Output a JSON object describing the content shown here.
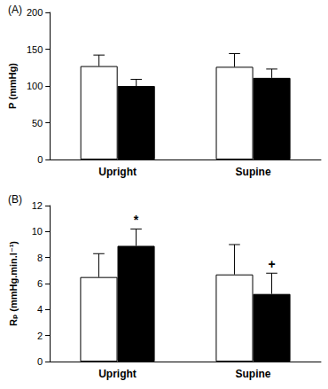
{
  "chart_data": [
    {
      "type": "bar",
      "panel_label": "(A)",
      "y_label": "P (mmHg)",
      "categories": [
        "Upright",
        "Supine"
      ],
      "series": [
        {
          "color": "#ffffff",
          "values": [
            127,
            126
          ],
          "errors": [
            15,
            18
          ]
        },
        {
          "color": "#000000",
          "values": [
            100,
            111
          ],
          "errors": [
            9,
            12
          ]
        }
      ],
      "ylim": [
        0,
        200
      ],
      "yticks": [
        0,
        50,
        100,
        150,
        200
      ],
      "grid": false
    },
    {
      "type": "bar",
      "panel_label": "(B)",
      "y_label": "Rₚ (mmHg.min.l⁻¹)",
      "categories": [
        "Upright",
        "Supine"
      ],
      "series": [
        {
          "color": "#ffffff",
          "values": [
            6.5,
            6.7
          ],
          "errors": [
            1.8,
            2.3
          ]
        },
        {
          "color": "#000000",
          "values": [
            8.9,
            5.2
          ],
          "errors": [
            1.3,
            1.6
          ],
          "annotations": [
            "*",
            "+"
          ]
        }
      ],
      "ylim": [
        0,
        12
      ],
      "yticks": [
        0,
        2,
        4,
        6,
        8,
        10,
        12
      ],
      "grid": false
    }
  ]
}
